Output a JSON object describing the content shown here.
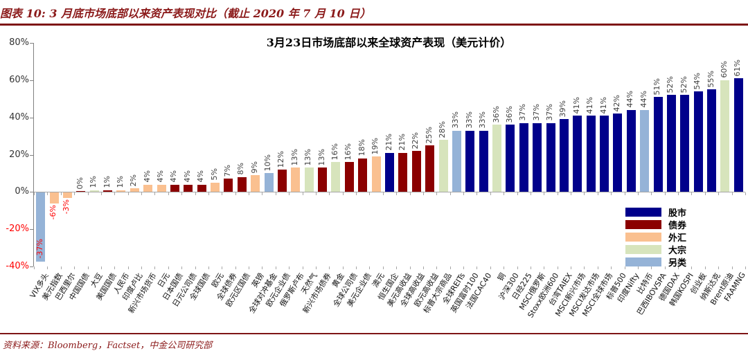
{
  "header": {
    "title": "图表 10: 3 月底市场底部以来资产表现对比（截止 2020 年 7 月 10 日）"
  },
  "footer": {
    "source": "资料来源：Bloomberg，Factset，中金公司研究部"
  },
  "chart_data": {
    "type": "bar",
    "title": "3月23日市场底部以来全球资产表现（美元计价）",
    "unit": "%",
    "ylim": [
      -40,
      80
    ],
    "yticks": [
      80,
      60,
      40,
      20,
      0,
      -20,
      -40
    ],
    "grid": false,
    "legend_position": "right-middle",
    "groups": {
      "股市": "#00008b",
      "债券": "#8b0000",
      "外汇": "#fac090",
      "大宗": "#d7e4bc",
      "另类": "#95b3d7"
    },
    "legend": [
      "股市",
      "债券",
      "外汇",
      "大宗",
      "另类"
    ],
    "negative_label_color": "#ff0000",
    "bars": [
      {
        "label": "VIX多头",
        "value": -37,
        "group": "另类"
      },
      {
        "label": "美元指数",
        "value": -6,
        "group": "外汇"
      },
      {
        "label": "巴西里尔",
        "value": -3,
        "group": "外汇"
      },
      {
        "label": "中国国债",
        "value": 0,
        "group": "债券"
      },
      {
        "label": "大豆",
        "value": 1,
        "group": "大宗"
      },
      {
        "label": "美国国债",
        "value": 1,
        "group": "债券"
      },
      {
        "label": "人民币",
        "value": 1,
        "group": "外汇"
      },
      {
        "label": "印度卢比",
        "value": 2,
        "group": "外汇"
      },
      {
        "label": "新兴市场货币",
        "value": 4,
        "group": "外汇"
      },
      {
        "label": "日元",
        "value": 4,
        "group": "外汇"
      },
      {
        "label": "日本国债",
        "value": 4,
        "group": "债券"
      },
      {
        "label": "日元公司债",
        "value": 4,
        "group": "债券"
      },
      {
        "label": "全球国债",
        "value": 4,
        "group": "债券"
      },
      {
        "label": "欧元",
        "value": 5,
        "group": "外汇"
      },
      {
        "label": "全球债券",
        "value": 7,
        "group": "债券"
      },
      {
        "label": "欧元区国债",
        "value": 8,
        "group": "债券"
      },
      {
        "label": "英镑",
        "value": 9,
        "group": "外汇"
      },
      {
        "label": "全球对冲基金",
        "value": 10,
        "group": "另类"
      },
      {
        "label": "欧元企业债",
        "value": 12,
        "group": "债券"
      },
      {
        "label": "俄罗斯卢布",
        "value": 13,
        "group": "外汇"
      },
      {
        "label": "天然气",
        "value": 13,
        "group": "大宗"
      },
      {
        "label": "新兴市场债券",
        "value": 13,
        "group": "债券"
      },
      {
        "label": "黄金",
        "value": 16,
        "group": "大宗"
      },
      {
        "label": "全球公司债",
        "value": 16,
        "group": "债券"
      },
      {
        "label": "美元企业债",
        "value": 18,
        "group": "债券"
      },
      {
        "label": "澳元",
        "value": 19,
        "group": "外汇"
      },
      {
        "label": "恒生国企",
        "value": 21,
        "group": "股市"
      },
      {
        "label": "美元高收益",
        "value": 21,
        "group": "债券"
      },
      {
        "label": "全球高收益",
        "value": 22,
        "group": "债券"
      },
      {
        "label": "欧元高收益",
        "value": 25,
        "group": "债券"
      },
      {
        "label": "标普大宗商品",
        "value": 28,
        "group": "大宗"
      },
      {
        "label": "全球REITs",
        "value": 33,
        "group": "另类"
      },
      {
        "label": "英国富时100",
        "value": 33,
        "group": "股市"
      },
      {
        "label": "法国CAC40",
        "value": 33,
        "group": "股市"
      },
      {
        "label": "铜",
        "value": 36,
        "group": "大宗"
      },
      {
        "label": "沪深300",
        "value": 36,
        "group": "股市"
      },
      {
        "label": "日经225",
        "value": 37,
        "group": "股市"
      },
      {
        "label": "MSCI俄罗斯",
        "value": 37,
        "group": "股市"
      },
      {
        "label": "Stoxx欧洲600",
        "value": 37,
        "group": "股市"
      },
      {
        "label": "台湾TAIEX",
        "value": 39,
        "group": "股市"
      },
      {
        "label": "MSCI新兴市场",
        "value": 41,
        "group": "股市"
      },
      {
        "label": "MSCI发达市场",
        "value": 41,
        "group": "股市"
      },
      {
        "label": "MSCI全球市场",
        "value": 41,
        "group": "股市"
      },
      {
        "label": "标普500",
        "value": 42,
        "group": "股市"
      },
      {
        "label": "印度Nifty",
        "value": 44,
        "group": "股市"
      },
      {
        "label": "比特币",
        "value": 44,
        "group": "另类"
      },
      {
        "label": "巴西IBOVSPA",
        "value": 51,
        "group": "股市"
      },
      {
        "label": "德国DAX",
        "value": 52,
        "group": "股市"
      },
      {
        "label": "韩国KOSPI",
        "value": 52,
        "group": "股市"
      },
      {
        "label": "创业板",
        "value": 54,
        "group": "股市"
      },
      {
        "label": "纳斯达克",
        "value": 55,
        "group": "股市"
      },
      {
        "label": "Brent原油",
        "value": 60,
        "group": "大宗"
      },
      {
        "label": "FAAMNG",
        "value": 61,
        "group": "股市"
      }
    ]
  }
}
